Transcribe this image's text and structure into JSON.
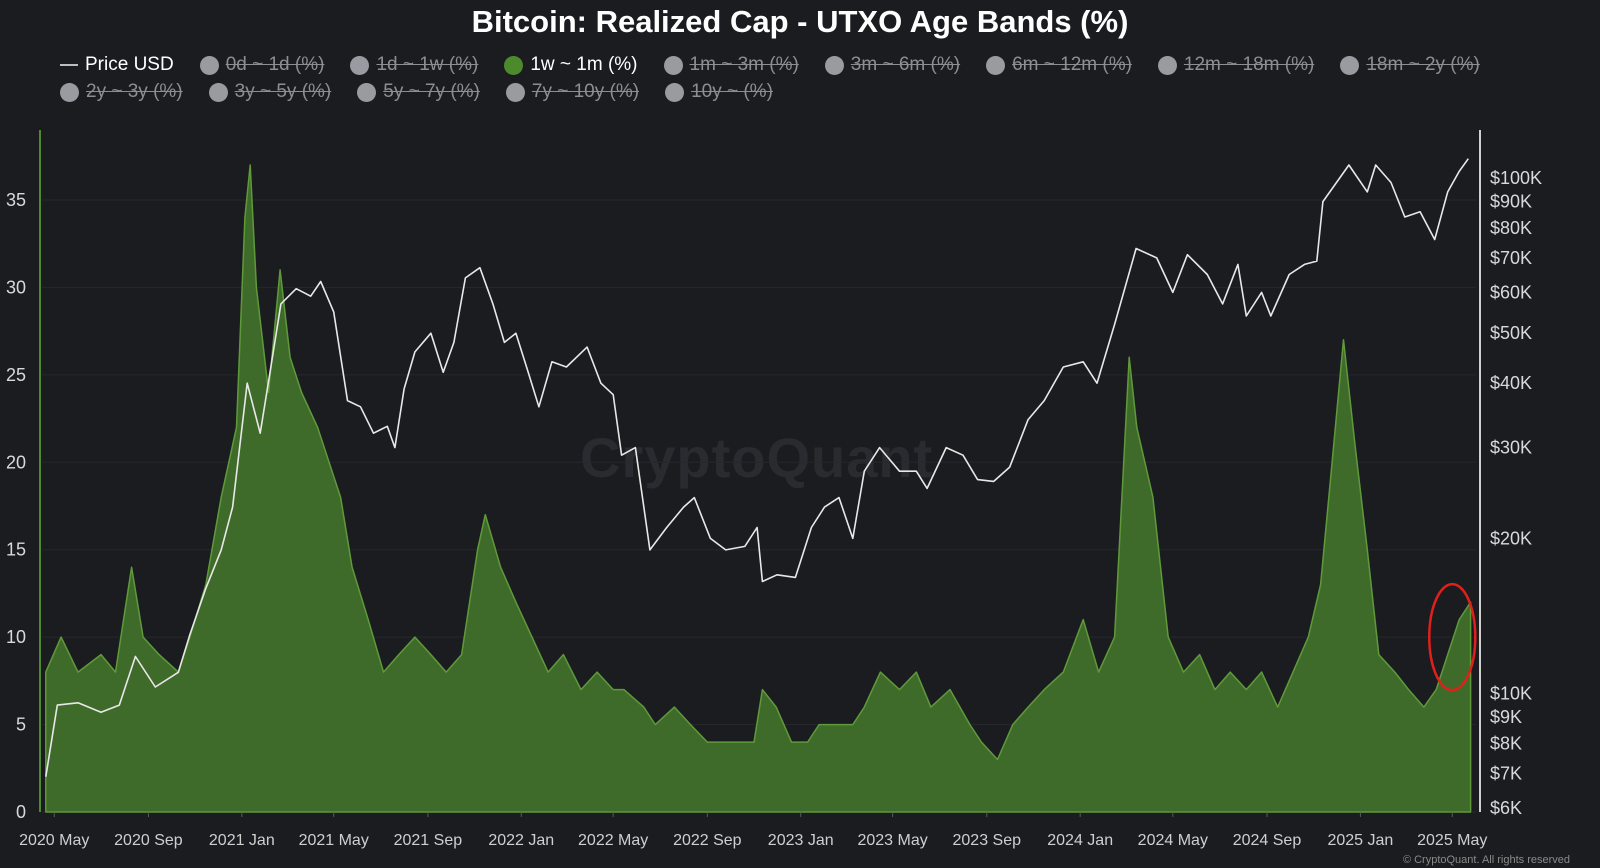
{
  "title": "Bitcoin: Realized Cap - UTXO Age Bands (%)",
  "legend": {
    "price_label": "Price USD",
    "bands": [
      {
        "label": "0d ~ 1d (%)",
        "active": false
      },
      {
        "label": "1d ~ 1w (%)",
        "active": false
      },
      {
        "label": "1w ~ 1m (%)",
        "active": true
      },
      {
        "label": "1m ~ 3m (%)",
        "active": false
      },
      {
        "label": "3m ~ 6m (%)",
        "active": false
      },
      {
        "label": "6m ~ 12m (%)",
        "active": false
      },
      {
        "label": "12m ~ 18m (%)",
        "active": false
      },
      {
        "label": "18m ~ 2y (%)",
        "active": false
      },
      {
        "label": "2y ~ 3y (%)",
        "active": false
      },
      {
        "label": "3y ~ 5y (%)",
        "active": false
      },
      {
        "label": "5y ~ 7y (%)",
        "active": false
      },
      {
        "label": "7y ~ 10y (%)",
        "active": false
      },
      {
        "label": "10y ~ (%)",
        "active": false
      }
    ]
  },
  "watermark": "CryptoQuant",
  "copyright": "© CryptoQuant. All rights reserved",
  "colors": {
    "background": "#1b1c20",
    "band_fill": "#3f6b2a",
    "band_line": "#5f9a3a",
    "price_line": "#e8e8e8",
    "highlight_circle": "#e0201b"
  },
  "chart_data": {
    "type": "area",
    "left_axis": {
      "ticks": [
        "0",
        "5",
        "10",
        "15",
        "20",
        "25",
        "30",
        "35"
      ],
      "ylim": [
        0,
        39
      ]
    },
    "right_axis": {
      "scale": "log",
      "ticks": [
        "$6K",
        "$7K",
        "$8K",
        "$9K",
        "$10K",
        "$20K",
        "$30K",
        "$40K",
        "$50K",
        "$60K",
        "$70K",
        "$80K",
        "$90K",
        "$100K"
      ],
      "tick_values": [
        6000,
        7000,
        8000,
        9000,
        10000,
        20000,
        30000,
        40000,
        50000,
        60000,
        70000,
        80000,
        90000,
        100000
      ]
    },
    "x_ticks": [
      "2020 May",
      "2020 Sep",
      "2021 Jan",
      "2021 May",
      "2021 Sep",
      "2022 Jan",
      "2022 May",
      "2022 Sep",
      "2023 Jan",
      "2023 May",
      "2023 Sep",
      "2024 Jan",
      "2024 May",
      "2024 Sep",
      "2025 Jan",
      "2025 May"
    ],
    "x_range": [
      "2020-04-15",
      "2025-06-01"
    ],
    "series": [
      {
        "name": "1w ~ 1m (%)",
        "axis": "left",
        "x": [
          "2020-04-20",
          "2020-05-10",
          "2020-06-01",
          "2020-07-01",
          "2020-07-20",
          "2020-08-10",
          "2020-08-25",
          "2020-09-15",
          "2020-10-10",
          "2020-10-25",
          "2020-11-15",
          "2020-12-05",
          "2020-12-25",
          "2021-01-05",
          "2021-01-12",
          "2021-01-20",
          "2021-02-05",
          "2021-02-20",
          "2021-03-05",
          "2021-03-20",
          "2021-04-10",
          "2021-04-25",
          "2021-05-10",
          "2021-05-25",
          "2021-06-15",
          "2021-07-05",
          "2021-07-25",
          "2021-08-15",
          "2021-09-05",
          "2021-09-25",
          "2021-10-15",
          "2021-11-05",
          "2021-11-15",
          "2021-12-05",
          "2021-12-25",
          "2022-01-15",
          "2022-02-05",
          "2022-02-25",
          "2022-03-20",
          "2022-04-10",
          "2022-05-01",
          "2022-05-15",
          "2022-06-10",
          "2022-06-25",
          "2022-07-20",
          "2022-08-10",
          "2022-09-01",
          "2022-09-25",
          "2022-10-15",
          "2022-11-01",
          "2022-11-12",
          "2022-11-30",
          "2022-12-20",
          "2023-01-10",
          "2023-01-25",
          "2023-02-15",
          "2023-03-10",
          "2023-03-25",
          "2023-04-15",
          "2023-05-10",
          "2023-06-01",
          "2023-06-20",
          "2023-07-15",
          "2023-08-10",
          "2023-08-25",
          "2023-09-15",
          "2023-10-05",
          "2023-10-25",
          "2023-11-15",
          "2023-12-10",
          "2024-01-05",
          "2024-01-25",
          "2024-02-15",
          "2024-03-05",
          "2024-03-15",
          "2024-04-05",
          "2024-04-25",
          "2024-05-15",
          "2024-06-05",
          "2024-06-25",
          "2024-07-15",
          "2024-08-05",
          "2024-08-25",
          "2024-09-15",
          "2024-10-05",
          "2024-10-25",
          "2024-11-10",
          "2024-11-25",
          "2024-12-10",
          "2024-12-25",
          "2025-01-10",
          "2025-01-25",
          "2025-02-15",
          "2025-03-05",
          "2025-03-25",
          "2025-04-10",
          "2025-04-25",
          "2025-05-10",
          "2025-05-25"
        ],
        "values": [
          8,
          10,
          8,
          9,
          8,
          14,
          10,
          9,
          8,
          10,
          13,
          18,
          22,
          34,
          37,
          30,
          24,
          31,
          26,
          24,
          22,
          20,
          18,
          14,
          11,
          8,
          9,
          10,
          9,
          8,
          9,
          15,
          17,
          14,
          12,
          10,
          8,
          9,
          7,
          8,
          7,
          7,
          6,
          5,
          6,
          5,
          4,
          4,
          4,
          4,
          7,
          6,
          4,
          4,
          5,
          5,
          5,
          6,
          8,
          7,
          8,
          6,
          7,
          5,
          4,
          3,
          5,
          6,
          7,
          8,
          11,
          8,
          10,
          26,
          22,
          18,
          10,
          8,
          9,
          7,
          8,
          7,
          8,
          6,
          8,
          10,
          13,
          20,
          27,
          21,
          15,
          9,
          8,
          7,
          6,
          7,
          9,
          11,
          12
        ]
      },
      {
        "name": "Price USD",
        "axis": "right",
        "x": [
          "2020-04-20",
          "2020-05-05",
          "2020-06-01",
          "2020-07-01",
          "2020-07-25",
          "2020-08-15",
          "2020-09-10",
          "2020-10-10",
          "2020-10-25",
          "2020-11-15",
          "2020-12-05",
          "2020-12-20",
          "2021-01-08",
          "2021-01-25",
          "2021-02-10",
          "2021-02-21",
          "2021-03-13",
          "2021-04-01",
          "2021-04-14",
          "2021-05-01",
          "2021-05-19",
          "2021-06-05",
          "2021-06-22",
          "2021-07-10",
          "2021-07-20",
          "2021-08-01",
          "2021-08-15",
          "2021-09-05",
          "2021-09-21",
          "2021-10-05",
          "2021-10-20",
          "2021-11-08",
          "2021-11-25",
          "2021-12-10",
          "2021-12-25",
          "2022-01-10",
          "2022-01-24",
          "2022-02-10",
          "2022-03-01",
          "2022-03-28",
          "2022-04-15",
          "2022-05-01",
          "2022-05-12",
          "2022-05-30",
          "2022-06-18",
          "2022-07-10",
          "2022-08-01",
          "2022-08-15",
          "2022-09-05",
          "2022-09-25",
          "2022-10-20",
          "2022-11-05",
          "2022-11-12",
          "2022-12-01",
          "2022-12-25",
          "2023-01-15",
          "2023-02-01",
          "2023-02-20",
          "2023-03-10",
          "2023-03-25",
          "2023-04-14",
          "2023-05-10",
          "2023-06-01",
          "2023-06-15",
          "2023-07-10",
          "2023-08-01",
          "2023-08-20",
          "2023-09-10",
          "2023-10-01",
          "2023-10-25",
          "2023-11-15",
          "2023-12-10",
          "2024-01-05",
          "2024-01-23",
          "2024-02-15",
          "2024-03-14",
          "2024-04-10",
          "2024-05-01",
          "2024-05-20",
          "2024-06-15",
          "2024-07-05",
          "2024-07-25",
          "2024-08-05",
          "2024-08-25",
          "2024-09-06",
          "2024-09-30",
          "2024-10-20",
          "2024-11-05",
          "2024-11-13",
          "2024-12-05",
          "2024-12-17",
          "2025-01-10",
          "2025-01-21",
          "2025-02-10",
          "2025-02-28",
          "2025-03-20",
          "2025-04-08",
          "2025-04-25",
          "2025-05-10",
          "2025-05-22"
        ],
        "values": [
          6900,
          9500,
          9600,
          9200,
          9500,
          11800,
          10300,
          11000,
          13000,
          16000,
          19000,
          23000,
          40000,
          32000,
          45000,
          57000,
          61000,
          59000,
          63000,
          55000,
          37000,
          36000,
          32000,
          33000,
          30000,
          39000,
          46000,
          50000,
          42000,
          48000,
          64000,
          67000,
          57000,
          48000,
          50000,
          42000,
          36000,
          44000,
          43000,
          47000,
          40000,
          38000,
          29000,
          30000,
          19000,
          21000,
          23000,
          24000,
          20000,
          19000,
          19300,
          21000,
          16500,
          17000,
          16800,
          21000,
          23000,
          24000,
          20000,
          27000,
          30000,
          27000,
          27000,
          25000,
          30000,
          29000,
          26000,
          25800,
          27500,
          34000,
          37000,
          43000,
          44000,
          40000,
          52000,
          73000,
          70000,
          60000,
          71000,
          65000,
          57000,
          68000,
          54000,
          60000,
          54000,
          65000,
          68000,
          69000,
          90000,
          100000,
          106000,
          94000,
          106000,
          98000,
          84000,
          86000,
          76000,
          94000,
          103000,
          109000
        ]
      }
    ],
    "annotation": {
      "type": "circle",
      "label": "",
      "x": "2025-05-01",
      "y": 10
    }
  }
}
